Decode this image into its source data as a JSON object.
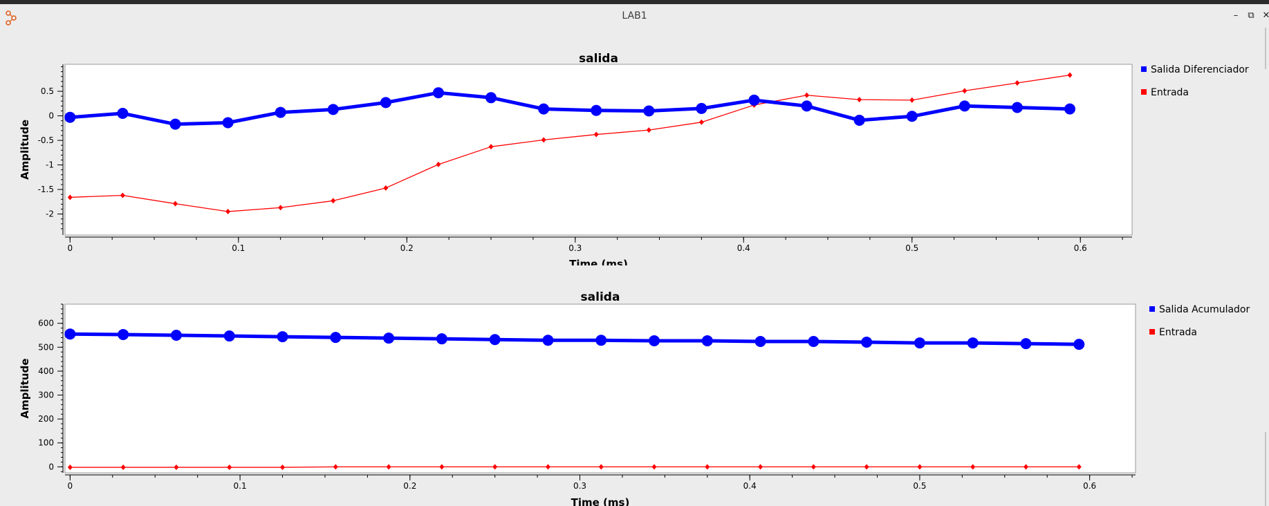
{
  "window": {
    "title": "LAB1",
    "app_icon": "gnuradio-icon",
    "controls": [
      "minimize-icon",
      "maximize-icon",
      "close-icon"
    ]
  },
  "chart_data": [
    {
      "type": "line",
      "title": "salida",
      "xlabel": "Time (ms)",
      "ylabel": "Amplitude",
      "xlim": [
        -0.003,
        0.627
      ],
      "ylim": [
        -2.4,
        1.05
      ],
      "xticks": [
        0,
        0.1,
        0.2,
        0.3,
        0.4,
        0.5,
        0.6
      ],
      "xtick_labels": [
        "0",
        "0.1",
        "0.2",
        "0.3",
        "0.4",
        "0.5",
        "0.6"
      ],
      "yticks": [
        -2,
        -1.5,
        -1,
        -0.5,
        0,
        0.5
      ],
      "ytick_labels": [
        "-2",
        "-1.5",
        "-1",
        "-0.5",
        "0",
        "0.5"
      ],
      "grid": false,
      "legend_position": "right",
      "x": [
        0,
        0.03125,
        0.0625,
        0.09375,
        0.125,
        0.15625,
        0.1875,
        0.21875,
        0.25,
        0.28125,
        0.3125,
        0.34375,
        0.375,
        0.40625,
        0.4375,
        0.46875,
        0.5,
        0.53125,
        0.5625,
        0.59375
      ],
      "series": [
        {
          "name": "Salida Diferenciador",
          "color": "#0000ff",
          "style": "thick-circle",
          "values": [
            -0.03,
            0.05,
            -0.17,
            -0.14,
            0.07,
            0.13,
            0.27,
            0.47,
            0.37,
            0.14,
            0.11,
            0.1,
            0.15,
            0.32,
            0.2,
            -0.09,
            -0.01,
            0.2,
            0.17,
            0.14
          ]
        },
        {
          "name": "Entrada",
          "color": "#ff0000",
          "style": "thin-diamond",
          "values": [
            -1.66,
            -1.62,
            -1.79,
            -1.95,
            -1.87,
            -1.73,
            -1.47,
            -0.99,
            -0.63,
            -0.49,
            -0.38,
            -0.29,
            -0.13,
            0.22,
            0.42,
            0.33,
            0.32,
            0.51,
            0.67,
            0.83
          ]
        }
      ]
    },
    {
      "type": "line",
      "title": "salida",
      "xlabel": "Time (ms)",
      "ylabel": "Amplitude",
      "xlim": [
        -0.003,
        0.627
      ],
      "ylim": [
        -25,
        680
      ],
      "xticks": [
        0,
        0.1,
        0.2,
        0.3,
        0.4,
        0.5,
        0.6
      ],
      "xtick_labels": [
        "0",
        "0.1",
        "0.2",
        "0.3",
        "0.4",
        "0.5",
        "0.6"
      ],
      "yticks": [
        0,
        100,
        200,
        300,
        400,
        500,
        600
      ],
      "ytick_labels": [
        "0",
        "100",
        "200",
        "300",
        "400",
        "500",
        "600"
      ],
      "grid": false,
      "legend_position": "right",
      "x": [
        0,
        0.03125,
        0.0625,
        0.09375,
        0.125,
        0.15625,
        0.1875,
        0.21875,
        0.25,
        0.28125,
        0.3125,
        0.34375,
        0.375,
        0.40625,
        0.4375,
        0.46875,
        0.5,
        0.53125,
        0.5625,
        0.59375
      ],
      "series": [
        {
          "name": "Salida Acumulador",
          "color": "#0000ff",
          "style": "thick-circle",
          "values": [
            555,
            553,
            550,
            547,
            544,
            541,
            538,
            535,
            532,
            529,
            529,
            527,
            527,
            524,
            524,
            521,
            518,
            518,
            515,
            512
          ]
        },
        {
          "name": "Entrada",
          "color": "#ff0000",
          "style": "thin-diamond",
          "values": [
            -2,
            -2,
            -2,
            -2,
            -2,
            0,
            0,
            0,
            0,
            0,
            0,
            0,
            0,
            0,
            0,
            0,
            0,
            0,
            0,
            0
          ]
        }
      ]
    }
  ]
}
